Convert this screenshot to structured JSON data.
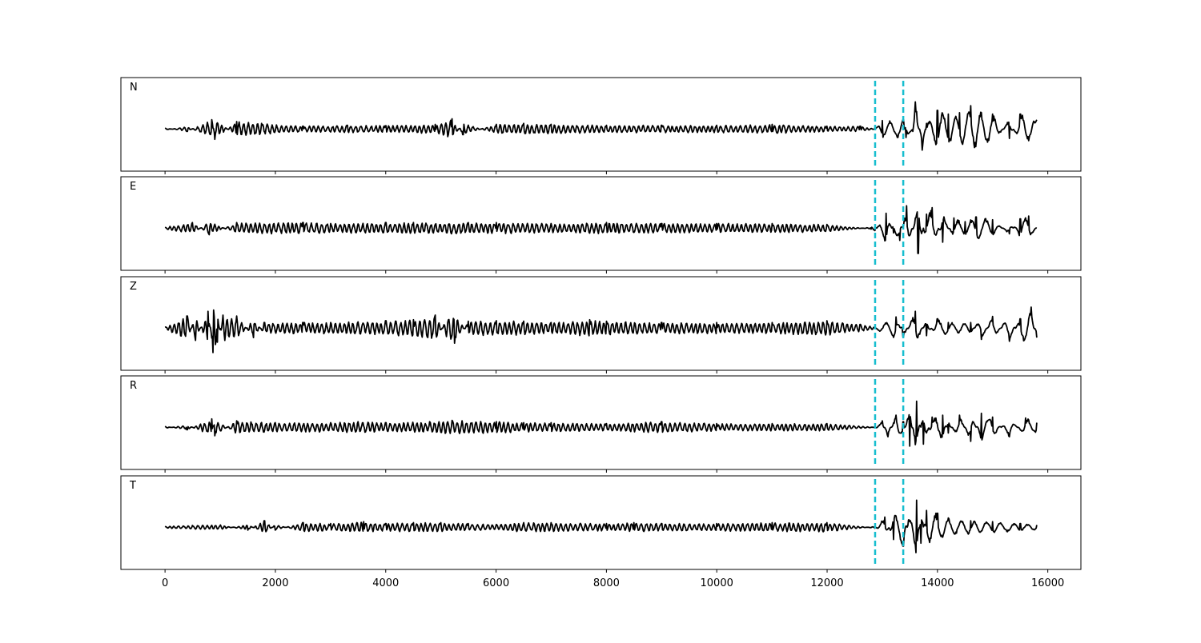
{
  "chart_data": {
    "type": "line",
    "x_ticks": [
      0,
      2000,
      4000,
      6000,
      8000,
      10000,
      12000,
      14000,
      16000
    ],
    "x_range": [
      -800,
      16600
    ],
    "shared_x": true,
    "grid": false,
    "markers": {
      "style": "dashed vertical",
      "color": "#17becf",
      "x": [
        12870,
        13380
      ]
    },
    "trace_color": "#000000",
    "panels": [
      {
        "label": "N",
        "x_end": 15800,
        "points": [
          [
            0,
            0.02
          ],
          [
            400,
            -0.05
          ],
          [
            850,
            0.2
          ],
          [
            900,
            -0.22
          ],
          [
            1300,
            0.16
          ],
          [
            1750,
            0.12
          ],
          [
            2500,
            0.06
          ],
          [
            3300,
            0.08
          ],
          [
            4000,
            0.07
          ],
          [
            4900,
            0.1
          ],
          [
            5200,
            0.22
          ],
          [
            5400,
            -0.12
          ],
          [
            6000,
            0.1
          ],
          [
            6500,
            0.12
          ],
          [
            7000,
            0.1
          ],
          [
            8000,
            0.08
          ],
          [
            9000,
            0.08
          ],
          [
            10000,
            0.08
          ],
          [
            11000,
            0.1
          ],
          [
            12000,
            0.06
          ],
          [
            12600,
            0.06
          ],
          [
            12870,
            0.0
          ],
          [
            13000,
            0.18
          ],
          [
            13380,
            0.2
          ],
          [
            13430,
            -0.18
          ],
          [
            13550,
            -0.05
          ],
          [
            13600,
            0.58
          ],
          [
            13720,
            -0.45
          ],
          [
            13800,
            0.12
          ],
          [
            14000,
            0.4
          ],
          [
            14200,
            0.32
          ],
          [
            14400,
            0.35
          ],
          [
            14600,
            0.5
          ],
          [
            14800,
            0.35
          ],
          [
            15000,
            0.32
          ],
          [
            15300,
            -0.2
          ],
          [
            15500,
            0.32
          ],
          [
            15800,
            0.2
          ]
        ]
      },
      {
        "label": "E",
        "x_end": 15800,
        "points": [
          [
            0,
            0.02
          ],
          [
            500,
            0.12
          ],
          [
            800,
            -0.14
          ],
          [
            1300,
            0.12
          ],
          [
            2500,
            0.12
          ],
          [
            3000,
            0.1
          ],
          [
            4000,
            0.12
          ],
          [
            4500,
            0.12
          ],
          [
            5500,
            0.12
          ],
          [
            6000,
            0.12
          ],
          [
            7000,
            0.1
          ],
          [
            8000,
            0.12
          ],
          [
            9000,
            0.1
          ],
          [
            10000,
            0.1
          ],
          [
            11000,
            0.1
          ],
          [
            12000,
            0.08
          ],
          [
            12800,
            -0.02
          ],
          [
            12870,
            -0.05
          ],
          [
            13070,
            0.32
          ],
          [
            13200,
            -0.1
          ],
          [
            13320,
            -0.26
          ],
          [
            13380,
            0.05
          ],
          [
            13440,
            0.48
          ],
          [
            13650,
            -0.54
          ],
          [
            13800,
            0.3
          ],
          [
            13900,
            0.44
          ],
          [
            14100,
            -0.3
          ],
          [
            14300,
            0.22
          ],
          [
            14500,
            0.14
          ],
          [
            14700,
            0.24
          ],
          [
            15000,
            0.18
          ],
          [
            15300,
            -0.12
          ],
          [
            15500,
            0.2
          ],
          [
            15650,
            0.26
          ],
          [
            15800,
            0.0
          ]
        ]
      },
      {
        "label": "Z",
        "x_end": 15800,
        "points": [
          [
            0,
            0.02
          ],
          [
            400,
            0.26
          ],
          [
            550,
            -0.26
          ],
          [
            780,
            0.36
          ],
          [
            870,
            -0.52
          ],
          [
            950,
            -0.3
          ],
          [
            1050,
            0.28
          ],
          [
            1300,
            0.26
          ],
          [
            1600,
            -0.2
          ],
          [
            1800,
            0.12
          ],
          [
            2500,
            0.12
          ],
          [
            3000,
            0.12
          ],
          [
            4000,
            0.16
          ],
          [
            4500,
            0.18
          ],
          [
            4900,
            0.28
          ],
          [
            5100,
            -0.18
          ],
          [
            5250,
            -0.32
          ],
          [
            5500,
            0.15
          ],
          [
            6000,
            0.16
          ],
          [
            6500,
            0.15
          ],
          [
            7000,
            0.12
          ],
          [
            7700,
            0.18
          ],
          [
            8000,
            0.15
          ],
          [
            9000,
            0.12
          ],
          [
            10000,
            0.12
          ],
          [
            11000,
            0.12
          ],
          [
            12000,
            0.16
          ],
          [
            12600,
            0.08
          ],
          [
            12870,
            0.02
          ],
          [
            13250,
            0.24
          ],
          [
            13380,
            -0.18
          ],
          [
            13600,
            0.36
          ],
          [
            13800,
            -0.16
          ],
          [
            14000,
            0.2
          ],
          [
            14200,
            0.12
          ],
          [
            14600,
            0.12
          ],
          [
            14800,
            -0.24
          ],
          [
            15000,
            0.25
          ],
          [
            15300,
            -0.28
          ],
          [
            15500,
            0.2
          ],
          [
            15700,
            0.45
          ],
          [
            15800,
            -0.2
          ]
        ]
      },
      {
        "label": "R",
        "x_end": 15800,
        "points": [
          [
            0,
            0.02
          ],
          [
            400,
            -0.05
          ],
          [
            850,
            0.18
          ],
          [
            900,
            -0.18
          ],
          [
            1300,
            0.14
          ],
          [
            2000,
            0.1
          ],
          [
            3000,
            0.1
          ],
          [
            3500,
            0.12
          ],
          [
            4000,
            0.1
          ],
          [
            4800,
            0.12
          ],
          [
            5200,
            0.15
          ],
          [
            6000,
            0.12
          ],
          [
            6500,
            0.1
          ],
          [
            7000,
            0.1
          ],
          [
            8000,
            0.08
          ],
          [
            9000,
            0.12
          ],
          [
            10000,
            0.08
          ],
          [
            11000,
            0.08
          ],
          [
            12000,
            0.08
          ],
          [
            12870,
            0.0
          ],
          [
            13000,
            0.14
          ],
          [
            13100,
            -0.2
          ],
          [
            13250,
            0.26
          ],
          [
            13380,
            0.12
          ],
          [
            13500,
            -0.4
          ],
          [
            13620,
            0.56
          ],
          [
            13750,
            -0.36
          ],
          [
            13900,
            0.22
          ],
          [
            14100,
            0.26
          ],
          [
            14200,
            -0.12
          ],
          [
            14400,
            0.26
          ],
          [
            14600,
            -0.3
          ],
          [
            14800,
            0.3
          ],
          [
            15000,
            0.22
          ],
          [
            15300,
            -0.2
          ],
          [
            15600,
            0.2
          ],
          [
            15800,
            0.1
          ]
        ]
      },
      {
        "label": "T",
        "x_end": 15800,
        "points": [
          [
            0,
            0.02
          ],
          [
            500,
            0.04
          ],
          [
            1000,
            0.05
          ],
          [
            1500,
            -0.06
          ],
          [
            1800,
            0.14
          ],
          [
            2000,
            -0.06
          ],
          [
            2500,
            0.1
          ],
          [
            3000,
            0.08
          ],
          [
            3600,
            0.12
          ],
          [
            4000,
            0.08
          ],
          [
            4500,
            0.1
          ],
          [
            5000,
            0.1
          ],
          [
            5500,
            0.08
          ],
          [
            6000,
            0.06
          ],
          [
            6500,
            0.1
          ],
          [
            7000,
            0.1
          ],
          [
            8000,
            0.08
          ],
          [
            8500,
            0.1
          ],
          [
            9000,
            0.08
          ],
          [
            10000,
            0.08
          ],
          [
            11000,
            0.1
          ],
          [
            12000,
            0.1
          ],
          [
            12870,
            -0.02
          ],
          [
            13050,
            0.22
          ],
          [
            13200,
            -0.26
          ],
          [
            13380,
            -0.4
          ],
          [
            13480,
            0.16
          ],
          [
            13620,
            0.58
          ],
          [
            13700,
            -0.34
          ],
          [
            13800,
            0.36
          ],
          [
            14000,
            0.3
          ],
          [
            14200,
            0.2
          ],
          [
            14600,
            0.14
          ],
          [
            15000,
            0.12
          ],
          [
            15500,
            0.08
          ],
          [
            15800,
            0.05
          ]
        ]
      }
    ]
  }
}
